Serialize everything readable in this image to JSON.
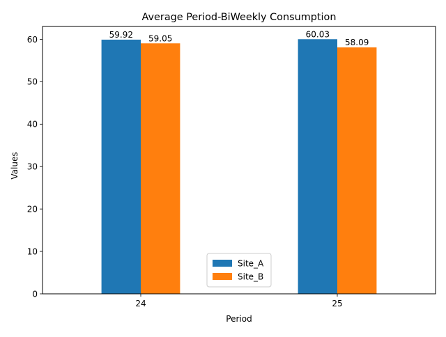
{
  "chart_data": {
    "type": "bar",
    "title": "Average Period-BiWeekly Consumption",
    "xlabel": "Period",
    "ylabel": "Values",
    "categories": [
      "24",
      "25"
    ],
    "series": [
      {
        "name": "Site_A",
        "values": [
          59.92,
          60.03
        ],
        "labels": [
          "59.92",
          "60.03"
        ],
        "color": "#1f77b4"
      },
      {
        "name": "Site_B",
        "values": [
          59.05,
          58.09
        ],
        "labels": [
          "59.05",
          "58.09"
        ],
        "color": "#ff7f0e"
      }
    ],
    "ylim": [
      0,
      63.03
    ],
    "yticks": [
      0,
      10,
      20,
      30,
      40,
      50,
      60
    ],
    "legend_position": "lower-center",
    "grid": false
  }
}
